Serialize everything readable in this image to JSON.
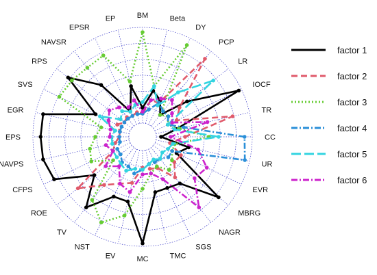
{
  "chart_data": {
    "type": "radar",
    "axes": [
      "BM",
      "Beta",
      "DY",
      "PCP",
      "LR",
      "IOCF",
      "TR",
      "CC",
      "UR",
      "EVR",
      "MBRG",
      "NAGR",
      "SGS",
      "TMC",
      "MC",
      "EV",
      "NST",
      "TV",
      "ROE",
      "CFPS",
      "NAVPS",
      "EPS",
      "EGR",
      "SVS",
      "RPS",
      "NAVSR",
      "EPSR",
      "EP"
    ],
    "rmax": 1.0,
    "ring_count": 6,
    "series": [
      {
        "name": "factor 1",
        "color": "#000000",
        "style": "solid",
        "values": [
          0.16,
          0.35,
          0.28,
          0.15,
          0.45,
          0.97,
          0.22,
          0.05,
          0.35,
          0.25,
          0.87,
          0.48,
          0.45,
          0.45,
          0.97,
          0.55,
          0.55,
          0.8,
          0.5,
          0.88,
          0.92,
          0.92,
          0.92,
          0.4,
          0.85,
          0.55,
          0.15,
          0.4
        ]
      },
      {
        "name": "factor 2",
        "color": "#e05a6b",
        "style": "dash",
        "values": [
          0.1,
          0.25,
          0.25,
          0.9,
          0.35,
          0.25,
          0.82,
          0.3,
          0.15,
          0.3,
          0.28,
          0.4,
          0.22,
          0.2,
          0.18,
          0.35,
          0.4,
          0.5,
          0.72,
          0.2,
          0.15,
          0.1,
          0.1,
          0.15,
          0.1,
          0.12,
          0.1,
          0.12
        ]
      },
      {
        "name": "factor 3",
        "color": "#66cc33",
        "style": "dot",
        "values": [
          0.95,
          0.4,
          0.92,
          0.15,
          0.2,
          0.15,
          0.25,
          0.55,
          0.2,
          0.2,
          0.25,
          0.3,
          0.2,
          0.25,
          0.4,
          0.7,
          0.85,
          0.7,
          0.25,
          0.45,
          0.42,
          0.35,
          0.3,
          0.82,
          0.8,
          0.78,
          0.8,
          0.45
        ]
      },
      {
        "name": "factor 4",
        "color": "#2a8fd8",
        "style": "dashdot",
        "values": [
          0.1,
          0.15,
          0.25,
          0.2,
          0.2,
          0.15,
          0.3,
          0.92,
          0.95,
          0.2,
          0.2,
          0.15,
          0.15,
          0.15,
          0.2,
          0.25,
          0.2,
          0.2,
          0.15,
          0.15,
          0.1,
          0.1,
          0.1,
          0.1,
          0.1,
          0.1,
          0.1,
          0.1
        ]
      },
      {
        "name": "factor 5",
        "color": "#33d4e0",
        "style": "longdash",
        "values": [
          0.22,
          0.4,
          0.22,
          0.45,
          0.8,
          0.15,
          0.2,
          0.65,
          0.18,
          0.15,
          0.12,
          0.15,
          0.12,
          0.15,
          0.2,
          0.2,
          0.25,
          0.22,
          0.2,
          0.2,
          0.18,
          0.18,
          0.15,
          0.35,
          0.15,
          0.2,
          0.15,
          0.2
        ]
      },
      {
        "name": "factor 6",
        "color": "#cc22cc",
        "style": "dashdot",
        "values": [
          0.12,
          0.25,
          0.3,
          0.35,
          0.25,
          0.2,
          0.55,
          0.15,
          0.45,
          0.6,
          0.55,
          0.8,
          0.35,
          0.25,
          0.25,
          0.45,
          0.4,
          0.25,
          0.35,
          0.2,
          0.25,
          0.2,
          0.2,
          0.25,
          0.3,
          0.25,
          0.2,
          0.25
        ]
      }
    ]
  }
}
